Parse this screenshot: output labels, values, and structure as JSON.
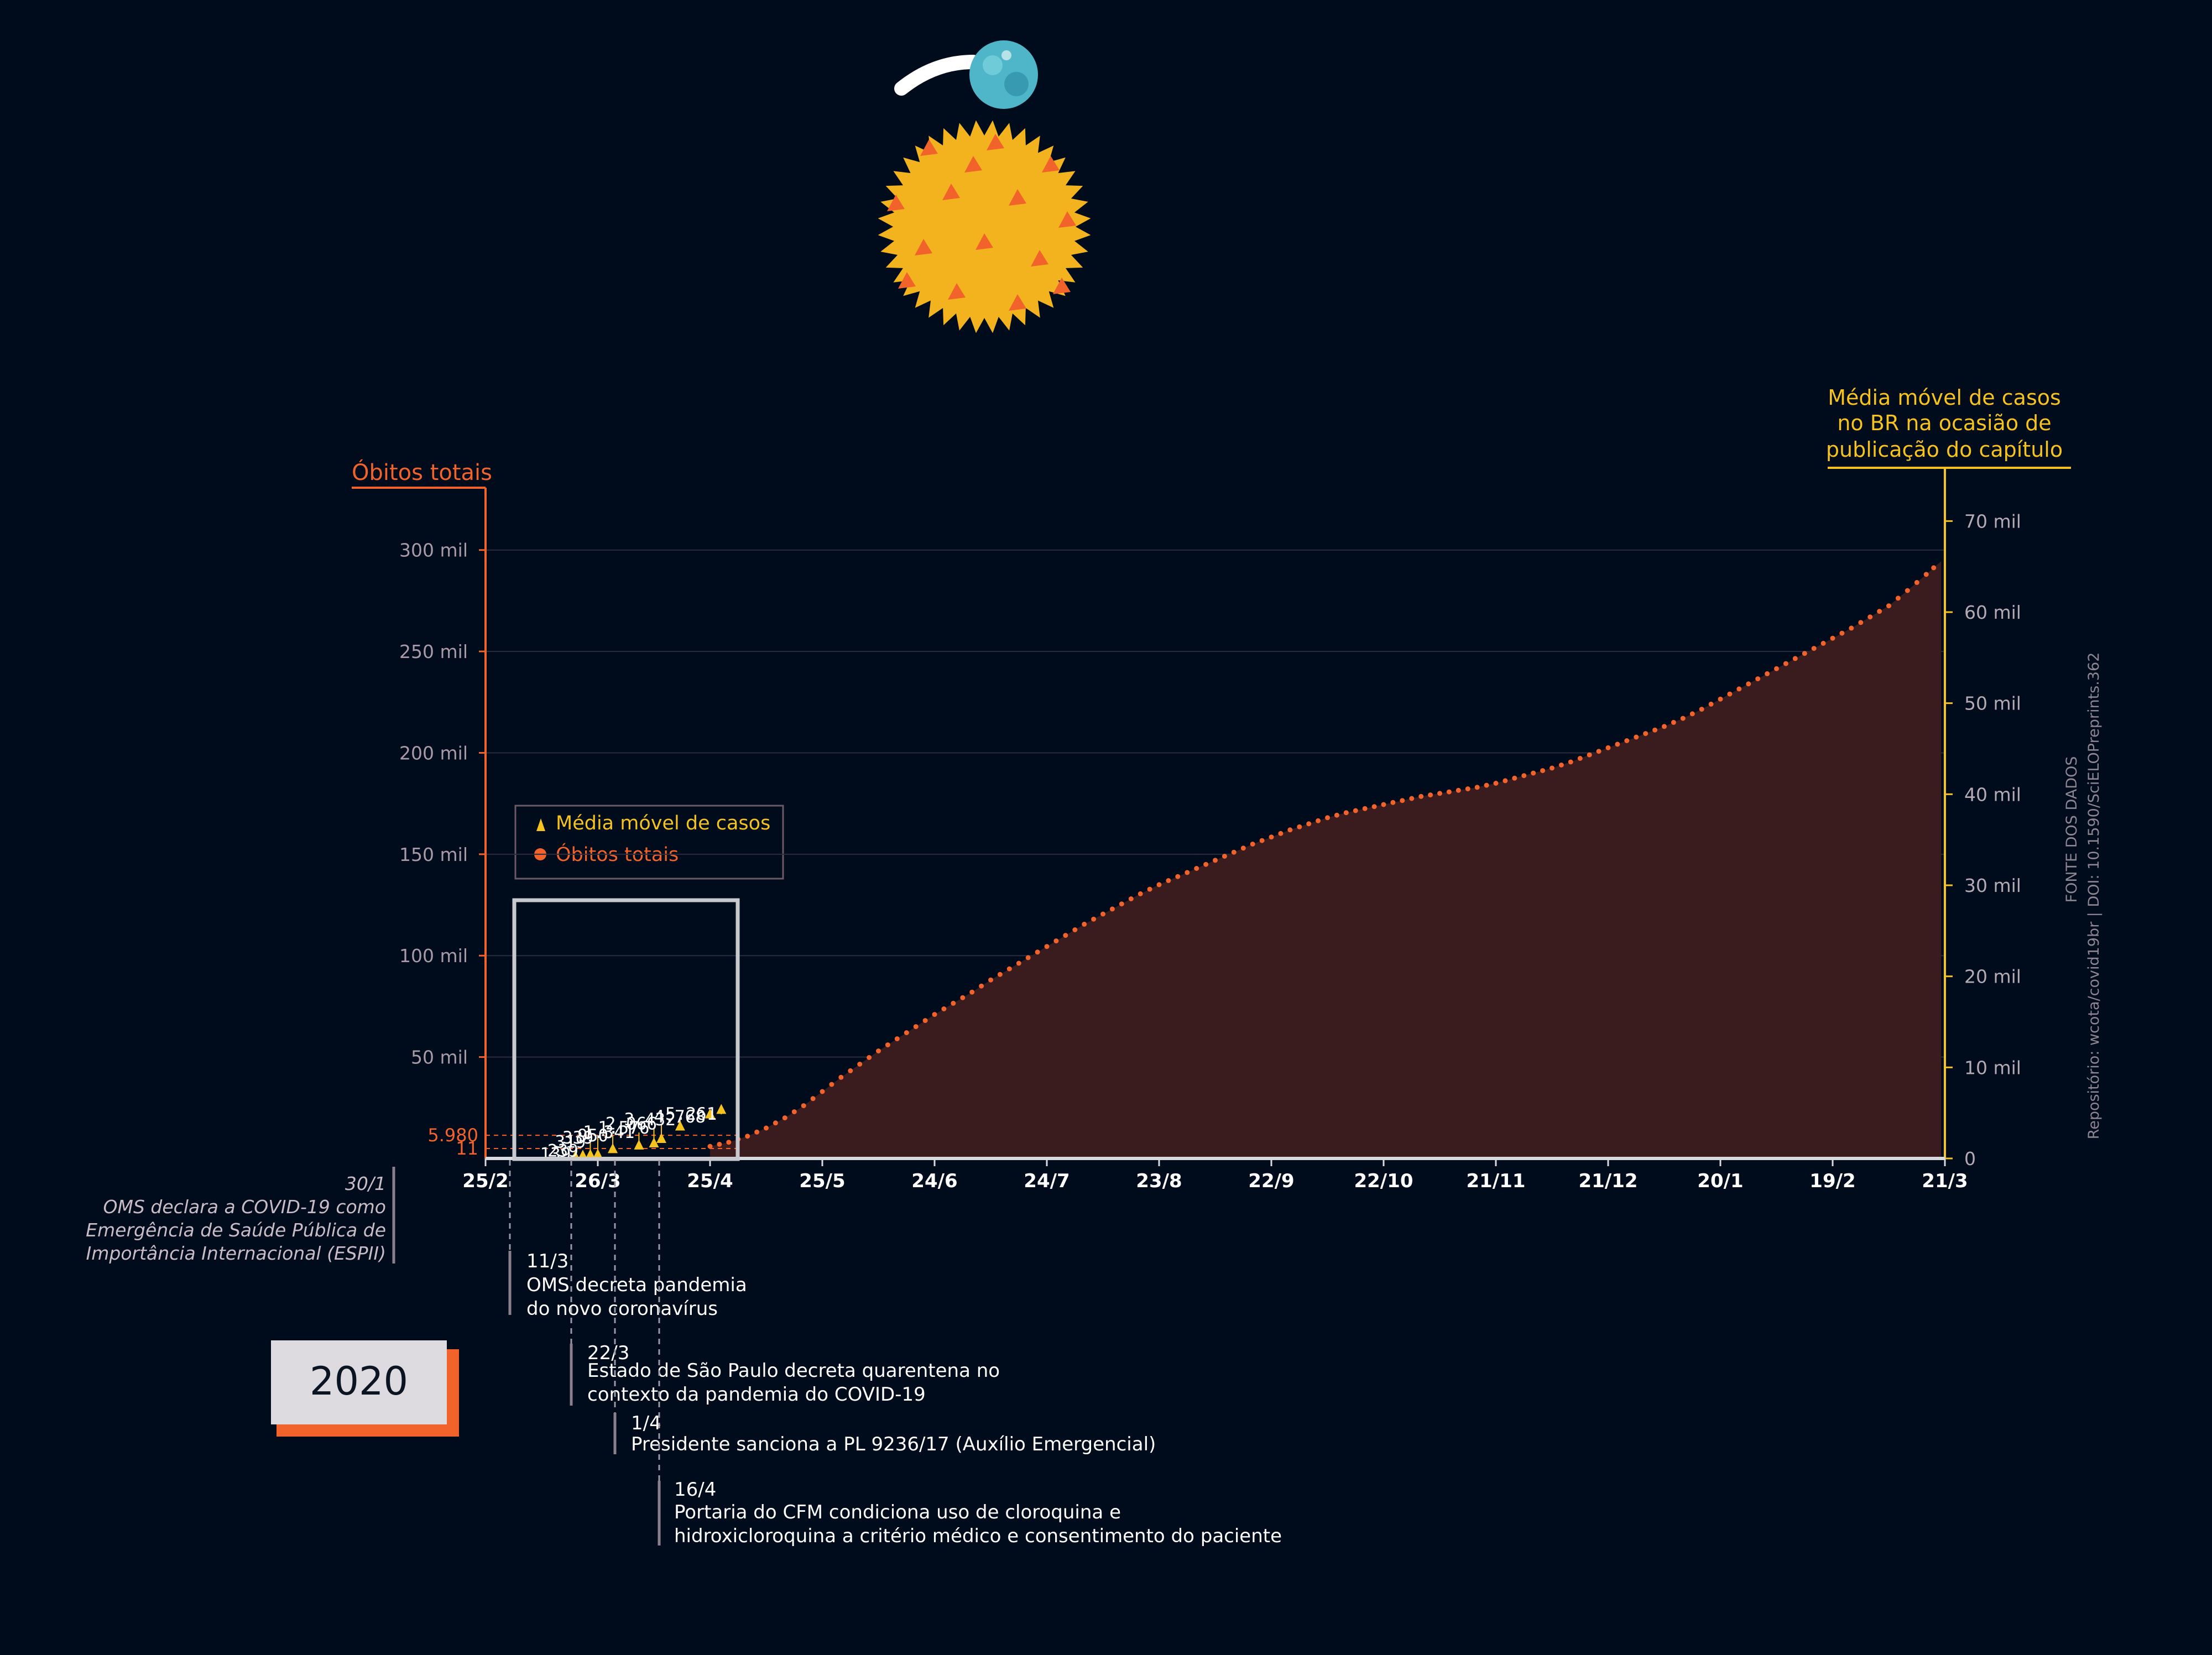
{
  "chart_data": {
    "type": "area",
    "left_axis": {
      "title": "Óbitos totais",
      "ticks": [
        {
          "value": 50000,
          "label": "50 mil"
        },
        {
          "value": 100000,
          "label": "100 mil"
        },
        {
          "value": 150000,
          "label": "150 mil"
        },
        {
          "value": 200000,
          "label": "200 mil"
        },
        {
          "value": 250000,
          "label": "250 mil"
        },
        {
          "value": 300000,
          "label": "300 mil"
        }
      ],
      "range": [
        0,
        325000
      ],
      "markers": [
        {
          "value": 11,
          "label": "11"
        },
        {
          "value": 5980,
          "label": "5.980"
        }
      ],
      "color": "#f2622b"
    },
    "right_axis": {
      "title_lines": [
        "Média móvel de casos",
        "no BR na ocasião de",
        "publicação do capítulo"
      ],
      "ticks": [
        {
          "value": 0,
          "label": "0"
        },
        {
          "value": 10000,
          "label": "10 mil"
        },
        {
          "value": 20000,
          "label": "20 mil"
        },
        {
          "value": 30000,
          "label": "30 mil"
        },
        {
          "value": 40000,
          "label": "40 mil"
        },
        {
          "value": 50000,
          "label": "50 mil"
        },
        {
          "value": 60000,
          "label": "60 mil"
        },
        {
          "value": 70000,
          "label": "70 mil"
        }
      ],
      "range": [
        0,
        75000
      ],
      "color": "#f6c21d"
    },
    "x_axis": {
      "range_days": [
        0,
        390
      ],
      "ticks": [
        {
          "day": 0,
          "label": "25/2"
        },
        {
          "day": 30,
          "label": "26/3"
        },
        {
          "day": 60,
          "label": "25/4"
        },
        {
          "day": 90,
          "label": "25/5"
        },
        {
          "day": 120,
          "label": "24/6"
        },
        {
          "day": 150,
          "label": "24/7"
        },
        {
          "day": 180,
          "label": "23/8"
        },
        {
          "day": 210,
          "label": "22/9"
        },
        {
          "day": 240,
          "label": "22/10"
        },
        {
          "day": 270,
          "label": "21/11"
        },
        {
          "day": 300,
          "label": "21/12"
        },
        {
          "day": 330,
          "label": "20/1"
        },
        {
          "day": 360,
          "label": "19/2"
        },
        {
          "day": 390,
          "label": "21/3"
        }
      ]
    },
    "legend": {
      "placement": "upper-left",
      "items": [
        {
          "label": "Média móvel de casos",
          "color": "#f6c21d",
          "shape": "triangle"
        },
        {
          "label": "Óbitos totais",
          "color": "#f2622b",
          "shape": "circle"
        }
      ]
    },
    "series": [
      {
        "name": "Óbitos totais",
        "color": "#f2622b",
        "points": [
          [
            60,
            5980
          ],
          [
            65,
            8000
          ],
          [
            70,
            11000
          ],
          [
            75,
            15000
          ],
          [
            80,
            20000
          ],
          [
            85,
            26000
          ],
          [
            90,
            33000
          ],
          [
            95,
            40000
          ],
          [
            100,
            46500
          ],
          [
            105,
            53000
          ],
          [
            110,
            59000
          ],
          [
            115,
            65000
          ],
          [
            120,
            71000
          ],
          [
            125,
            76500
          ],
          [
            130,
            82000
          ],
          [
            135,
            88000
          ],
          [
            140,
            93500
          ],
          [
            145,
            99000
          ],
          [
            150,
            104500
          ],
          [
            155,
            110000
          ],
          [
            160,
            115500
          ],
          [
            165,
            120500
          ],
          [
            170,
            125500
          ],
          [
            175,
            130500
          ],
          [
            180,
            135000
          ],
          [
            185,
            139000
          ],
          [
            190,
            143000
          ],
          [
            195,
            147000
          ],
          [
            200,
            151000
          ],
          [
            205,
            155000
          ],
          [
            210,
            158500
          ],
          [
            215,
            162000
          ],
          [
            220,
            165000
          ],
          [
            225,
            168000
          ],
          [
            230,
            170500
          ],
          [
            235,
            172500
          ],
          [
            240,
            174500
          ],
          [
            245,
            176500
          ],
          [
            250,
            178500
          ],
          [
            255,
            180000
          ],
          [
            260,
            181500
          ],
          [
            265,
            183000
          ],
          [
            270,
            185000
          ],
          [
            275,
            187500
          ],
          [
            280,
            190000
          ],
          [
            285,
            192500
          ],
          [
            290,
            195500
          ],
          [
            295,
            199000
          ],
          [
            300,
            202500
          ],
          [
            305,
            206000
          ],
          [
            310,
            209500
          ],
          [
            315,
            213000
          ],
          [
            320,
            217000
          ],
          [
            325,
            221500
          ],
          [
            330,
            226500
          ],
          [
            335,
            231500
          ],
          [
            340,
            236500
          ],
          [
            345,
            241500
          ],
          [
            350,
            246500
          ],
          [
            355,
            251500
          ],
          [
            360,
            256500
          ],
          [
            365,
            261500
          ],
          [
            370,
            267000
          ],
          [
            375,
            272500
          ],
          [
            380,
            280000
          ],
          [
            385,
            288000
          ],
          [
            389,
            294500
          ]
        ]
      },
      {
        "name": "Média móvel de casos",
        "color": "#f6c21d",
        "points": [
          [
            24,
            139
          ],
          [
            26,
            239
          ],
          [
            28,
            319
          ],
          [
            30,
            339
          ],
          [
            34,
            950
          ],
          [
            41,
            1341
          ],
          [
            45,
            1576
          ],
          [
            47,
            2066
          ],
          [
            52,
            3432
          ],
          [
            60,
            4768
          ],
          [
            63,
            5261
          ]
        ]
      }
    ],
    "peak_labels": [
      {
        "day": 24,
        "value": 139,
        "label": "139",
        "stem_top": 15
      },
      {
        "day": 26,
        "value": 239,
        "label": "239",
        "stem_top": 27
      },
      {
        "day": 28,
        "value": 319,
        "label": "319",
        "stem_top": 59
      },
      {
        "day": 30,
        "value": 339,
        "label": "339",
        "stem_top": 74
      },
      {
        "day": 34,
        "value": 950,
        "label": "950",
        "stem_top": 82
      },
      {
        "day": 41,
        "value": 1341,
        "label": "1.341",
        "stem_top": 94
      },
      {
        "day": 45,
        "value": 1576,
        "label": "1.576",
        "stem_top": 110
      },
      {
        "day": 47,
        "value": 2066,
        "label": "2.066",
        "stem_top": 125
      },
      {
        "day": 52,
        "value": 3432,
        "label": "3.432",
        "stem_top": 140
      },
      {
        "day": 60,
        "value": 4768,
        "label": "4.768",
        "stem_top": 150
      },
      {
        "day": 63,
        "value": 5261,
        "label": "5.261",
        "stem_top": 160
      }
    ]
  },
  "source": {
    "line1": "FONTE DOS DADOS",
    "line2": "Repositório: wcota/covid19br | DOI: 10.1590/SciELOPreprints.362"
  },
  "year_badge": "2020",
  "events": [
    {
      "date": "30/1",
      "lines": [
        "OMS declara a COVID-19 como",
        "Emergência de Saúde Pública de",
        "Importância Internacional (ESPII)"
      ]
    },
    {
      "date": "11/3",
      "lines": [
        "OMS decreta pandemia",
        "do novo coronavírus"
      ]
    },
    {
      "date": "22/3",
      "lines": [
        "Estado de São Paulo decreta quarentena no",
        "contexto da pandemia do COVID-19"
      ]
    },
    {
      "date": "1/4",
      "lines": [
        "Presidente sanciona a PL 9236/17 (Auxílio Emergencial)"
      ]
    },
    {
      "date": "16/4",
      "lines": [
        "Portaria do CFM condiciona uso de cloroquina e",
        "hidroxicloroquina a critério médico e consentimento do paciente"
      ]
    }
  ],
  "colors": {
    "background": "#000b1c",
    "deaths": "#f2622b",
    "cases": "#f6c21d",
    "area_fill": "#3a1c1f",
    "virus": "#f2b31f",
    "earth": "#4fb6c9"
  },
  "illustrations": [
    "earth-icon",
    "virus-icon"
  ]
}
